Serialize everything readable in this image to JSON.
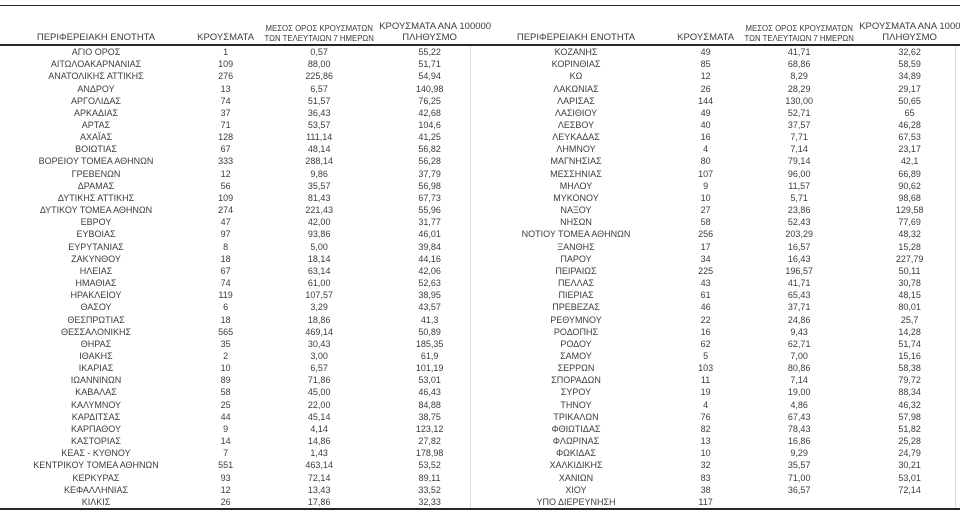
{
  "style": {
    "background": "#ffffff",
    "text_color": "#3c3c3c",
    "rule_color": "#262626",
    "divider_color": "#d9d9d9"
  },
  "headers": {
    "region": "ΠΕΡΙΦΕΡΕΙΑΚΗ ΕΝΟΤΗΤΑ",
    "cases": "ΚΡΟΥΣΜΑΤΑ",
    "avg7_line1": "ΜΕΣΟΣ ΟΡΟΣ ΚΡΟΥΣΜΑΤΩΝ",
    "avg7_line2": "ΤΩΝ ΤΕΛΕΥΤΑΙΩΝ 7 ΗΜΕΡΩΝ",
    "per100k_line1": "ΚΡΟΥΣΜΑΤΑ ΑΝΑ 100000",
    "per100k_line2": "ΠΛΗΘΥΣΜΟ"
  },
  "left_rows": [
    [
      "ΑΓΙΟ ΟΡΟΣ",
      "1",
      "0,57",
      "55,22"
    ],
    [
      "ΑΙΤΩΛΟΑΚΑΡΝΑΝΙΑΣ",
      "109",
      "88,00",
      "51,71"
    ],
    [
      "ΑΝΑΤΟΛΙΚΗΣ ΑΤΤΙΚΗΣ",
      "276",
      "225,86",
      "54,94"
    ],
    [
      "ΑΝΔΡΟΥ",
      "13",
      "6,57",
      "140,98"
    ],
    [
      "ΑΡΓΟΛΙΔΑΣ",
      "74",
      "51,57",
      "76,25"
    ],
    [
      "ΑΡΚΑΔΙΑΣ",
      "37",
      "36,43",
      "42,68"
    ],
    [
      "ΑΡΤΑΣ",
      "71",
      "53,57",
      "104,6"
    ],
    [
      "ΑΧΑΪΑΣ",
      "128",
      "111,14",
      "41,25"
    ],
    [
      "ΒΟΙΩΤΙΑΣ",
      "67",
      "48,14",
      "56,82"
    ],
    [
      "ΒΟΡΕΙΟΥ ΤΟΜΕΑ ΑΘΗΝΩΝ",
      "333",
      "288,14",
      "56,28"
    ],
    [
      "ΓΡΕΒΕΝΩΝ",
      "12",
      "9,86",
      "37,79"
    ],
    [
      "ΔΡΑΜΑΣ",
      "56",
      "35,57",
      "56,98"
    ],
    [
      "ΔΥΤΙΚΗΣ ΑΤΤΙΚΗΣ",
      "109",
      "81,43",
      "67,73"
    ],
    [
      "ΔΥΤΙΚΟΥ ΤΟΜΕΑ ΑΘΗΝΩΝ",
      "274",
      "221,43",
      "55,96"
    ],
    [
      "ΕΒΡΟΥ",
      "47",
      "42,00",
      "31,77"
    ],
    [
      "ΕΥΒΟΙΑΣ",
      "97",
      "93,86",
      "46,01"
    ],
    [
      "ΕΥΡΥΤΑΝΙΑΣ",
      "8",
      "5,00",
      "39,84"
    ],
    [
      "ΖΑΚΥΝΘΟΥ",
      "18",
      "18,14",
      "44,16"
    ],
    [
      "ΗΛΕΙΑΣ",
      "67",
      "63,14",
      "42,06"
    ],
    [
      "ΗΜΑΘΙΑΣ",
      "74",
      "61,00",
      "52,63"
    ],
    [
      "ΗΡΑΚΛΕΙΟΥ",
      "119",
      "107,57",
      "38,95"
    ],
    [
      "ΘΑΣΟΥ",
      "6",
      "3,29",
      "43,57"
    ],
    [
      "ΘΕΣΠΡΩΤΙΑΣ",
      "18",
      "18,86",
      "41,3"
    ],
    [
      "ΘΕΣΣΑΛΟΝΙΚΗΣ",
      "565",
      "469,14",
      "50,89"
    ],
    [
      "ΘΗΡΑΣ",
      "35",
      "30,43",
      "185,35"
    ],
    [
      "ΙΘΑΚΗΣ",
      "2",
      "3,00",
      "61,9"
    ],
    [
      "ΙΚΑΡΙΑΣ",
      "10",
      "6,57",
      "101,19"
    ],
    [
      "ΙΩΑΝΝΙΝΩΝ",
      "89",
      "71,86",
      "53,01"
    ],
    [
      "ΚΑΒΑΛΑΣ",
      "58",
      "45,00",
      "46,43"
    ],
    [
      "ΚΑΛΥΜΝΟΥ",
      "25",
      "22,00",
      "84,88"
    ],
    [
      "ΚΑΡΔΙΤΣΑΣ",
      "44",
      "45,14",
      "38,75"
    ],
    [
      "ΚΑΡΠΑΘΟΥ",
      "9",
      "4,14",
      "123,12"
    ],
    [
      "ΚΑΣΤΟΡΙΑΣ",
      "14",
      "14,86",
      "27,82"
    ],
    [
      "ΚΕΑΣ - ΚΥΘΝΟΥ",
      "7",
      "1,43",
      "178,98"
    ],
    [
      "ΚΕΝΤΡΙΚΟΥ ΤΟΜΕΑ ΑΘΗΝΩΝ",
      "551",
      "463,14",
      "53,52"
    ],
    [
      "ΚΕΡΚΥΡΑΣ",
      "93",
      "72,14",
      "89,11"
    ],
    [
      "ΚΕΦΑΛΛΗΝΙΑΣ",
      "12",
      "13,43",
      "33,52"
    ],
    [
      "ΚΙΛΚΙΣ",
      "26",
      "17,86",
      "32,33"
    ]
  ],
  "right_rows": [
    [
      "ΚΟΖΑΝΗΣ",
      "49",
      "41,71",
      "32,62"
    ],
    [
      "ΚΟΡΙΝΘΙΑΣ",
      "85",
      "68,86",
      "58,59"
    ],
    [
      "ΚΩ",
      "12",
      "8,29",
      "34,89"
    ],
    [
      "ΛΑΚΩΝΙΑΣ",
      "26",
      "28,29",
      "29,17"
    ],
    [
      "ΛΑΡΙΣΑΣ",
      "144",
      "130,00",
      "50,65"
    ],
    [
      "ΛΑΣΙΘΙΟΥ",
      "49",
      "52,71",
      "65"
    ],
    [
      "ΛΕΣΒΟΥ",
      "40",
      "37,57",
      "46,28"
    ],
    [
      "ΛΕΥΚΑΔΑΣ",
      "16",
      "7,71",
      "67,53"
    ],
    [
      "ΛΗΜΝΟΥ",
      "4",
      "7,14",
      "23,17"
    ],
    [
      "ΜΑΓΝΗΣΙΑΣ",
      "80",
      "79,14",
      "42,1"
    ],
    [
      "ΜΕΣΣΗΝΙΑΣ",
      "107",
      "96,00",
      "66,89"
    ],
    [
      "ΜΗΛΟΥ",
      "9",
      "11,57",
      "90,62"
    ],
    [
      "ΜΥΚΟΝΟΥ",
      "10",
      "5,71",
      "98,68"
    ],
    [
      "ΝΑΞΟΥ",
      "27",
      "23,86",
      "129,58"
    ],
    [
      "ΝΗΣΩΝ",
      "58",
      "52,43",
      "77,69"
    ],
    [
      "ΝΟΤΙΟΥ ΤΟΜΕΑ ΑΘΗΝΩΝ",
      "256",
      "203,29",
      "48,32"
    ],
    [
      "ΞΑΝΘΗΣ",
      "17",
      "16,57",
      "15,28"
    ],
    [
      "ΠΑΡΟΥ",
      "34",
      "16,43",
      "227,79"
    ],
    [
      "ΠΕΙΡΑΙΩΣ",
      "225",
      "196,57",
      "50,11"
    ],
    [
      "ΠΕΛΛΑΣ",
      "43",
      "41,71",
      "30,78"
    ],
    [
      "ΠΙΕΡΙΑΣ",
      "61",
      "65,43",
      "48,15"
    ],
    [
      "ΠΡΕΒΕΖΑΣ",
      "46",
      "37,71",
      "80,01"
    ],
    [
      "ΡΕΘΥΜΝΟΥ",
      "22",
      "24,86",
      "25,7"
    ],
    [
      "ΡΟΔΟΠΗΣ",
      "16",
      "9,43",
      "14,28"
    ],
    [
      "ΡΟΔΟΥ",
      "62",
      "62,71",
      "51,74"
    ],
    [
      "ΣΑΜΟΥ",
      "5",
      "7,00",
      "15,16"
    ],
    [
      "ΣΕΡΡΩΝ",
      "103",
      "80,86",
      "58,38"
    ],
    [
      "ΣΠΟΡΑΔΩΝ",
      "11",
      "7,14",
      "79,72"
    ],
    [
      "ΣΥΡΟΥ",
      "19",
      "19,00",
      "88,34"
    ],
    [
      "ΤΗΝΟΥ",
      "4",
      "4,86",
      "46,32"
    ],
    [
      "ΤΡΙΚΑΛΩΝ",
      "76",
      "67,43",
      "57,98"
    ],
    [
      "ΦΘΙΩΤΙΔΑΣ",
      "82",
      "78,43",
      "51,82"
    ],
    [
      "ΦΛΩΡΙΝΑΣ",
      "13",
      "16,86",
      "25,28"
    ],
    [
      "ΦΩΚΙΔΑΣ",
      "10",
      "9,29",
      "24,79"
    ],
    [
      "ΧΑΛΚΙΔΙΚΗΣ",
      "32",
      "35,57",
      "30,21"
    ],
    [
      "ΧΑΝΙΩΝ",
      "83",
      "71,00",
      "53,01"
    ],
    [
      "ΧΙΟΥ",
      "38",
      "36,57",
      "72,14"
    ],
    [
      "ΥΠΟ ΔΙΕΡΕΥΝΗΣΗ",
      "117",
      "",
      ""
    ]
  ]
}
